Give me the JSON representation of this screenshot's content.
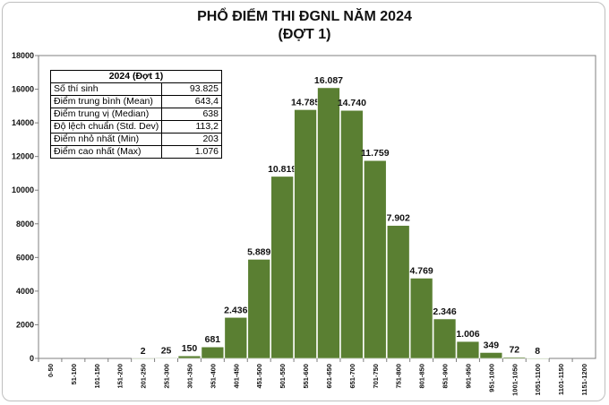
{
  "chart_data": {
    "type": "bar",
    "title": "PHỔ ĐIỂM THI ĐGNL NĂM 2024",
    "subtitle": "(ĐỢT 1)",
    "categories": [
      "0-50",
      "51-100",
      "101-150",
      "151-200",
      "201-250",
      "251-300",
      "301-350",
      "351-400",
      "401-450",
      "451-500",
      "501-550",
      "551-600",
      "601-650",
      "651-700",
      "701-750",
      "751-800",
      "801-850",
      "851-900",
      "901-950",
      "951-1000",
      "1001-1050",
      "1051-1100",
      "1101-1150",
      "1151-1200"
    ],
    "values": [
      0,
      0,
      0,
      0,
      2,
      25,
      150,
      681,
      2436,
      5889,
      10819,
      14785,
      16087,
      14740,
      11759,
      7902,
      4769,
      2346,
      1006,
      349,
      72,
      8,
      0,
      0
    ],
    "value_labels": [
      "",
      "",
      "",
      "",
      "2",
      "25",
      "150",
      "681",
      "2.436",
      "5.889",
      "10.819",
      "14.785",
      "16.087",
      "14.740",
      "11.759",
      "7.902",
      "4.769",
      "2.346",
      "1.006",
      "349",
      "72",
      "8",
      "",
      ""
    ],
    "y_ticks": [
      0,
      2000,
      4000,
      6000,
      8000,
      10000,
      12000,
      14000,
      16000,
      18000
    ],
    "ylim": [
      0,
      18000
    ],
    "bar_color": "#5a7f32",
    "grid": false
  },
  "stats_table": {
    "header": "2024 (Đợt 1)",
    "rows": [
      {
        "label": "Số thí sinh",
        "value": "93.825"
      },
      {
        "label": "Điểm trung bình (Mean)",
        "value": "643,4"
      },
      {
        "label": "Điểm trung vị (Median)",
        "value": "638"
      },
      {
        "label": "Độ lệch chuẩn (Std. Dev)",
        "value": "113,2"
      },
      {
        "label": "Điểm nhỏ nhất (Min)",
        "value": "203"
      },
      {
        "label": "Điểm cao nhất (Max)",
        "value": "1.076"
      }
    ]
  }
}
